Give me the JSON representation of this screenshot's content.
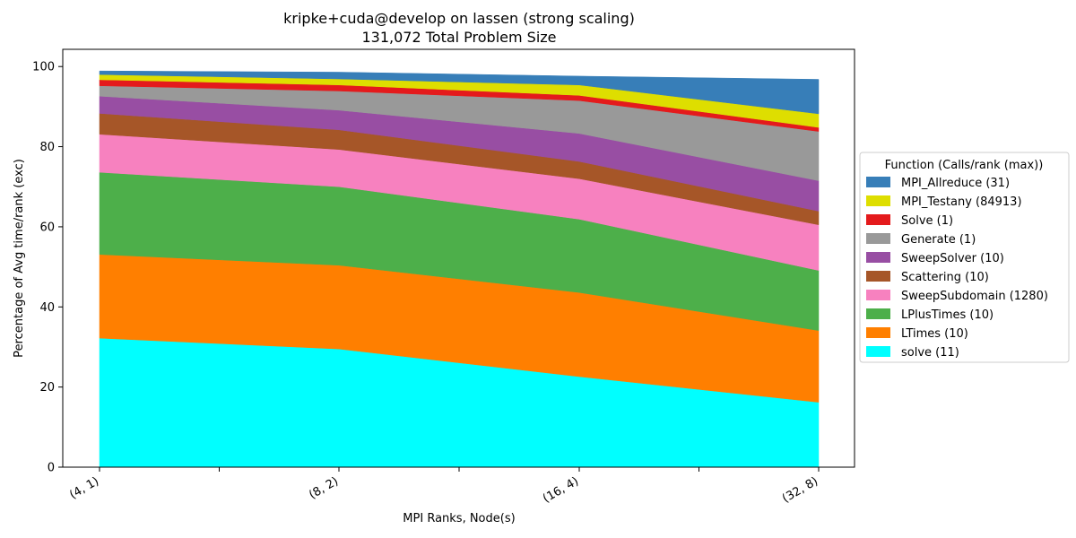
{
  "chart_data": {
    "type": "area",
    "stacked": true,
    "title_line1": "kripke+cuda@develop on lassen (strong scaling)",
    "title_line2": "131,072 Total Problem Size",
    "xlabel": "MPI Ranks, Node(s)",
    "ylabel": "Percentage of Avg time/rank (exc)",
    "categories": [
      "(4, 1)",
      "(8, 2)",
      "(16, 4)",
      "(32, 8)"
    ],
    "ylim": [
      0,
      104.3
    ],
    "yticks": [
      0,
      20,
      40,
      60,
      80,
      100
    ],
    "grid": false,
    "legend_title": "Function (Calls/rank (max))",
    "legend_position": "center-right outside",
    "series": [
      {
        "name": "solve (11)",
        "color": "#00ffff",
        "values": [
          32.2,
          29.5,
          22.6,
          16.2
        ]
      },
      {
        "name": "LTimes (10)",
        "color": "#ff7f00",
        "values": [
          20.9,
          20.9,
          21.0,
          17.9
        ]
      },
      {
        "name": "LPlusTimes (10)",
        "color": "#4daf4a",
        "values": [
          20.5,
          19.6,
          18.3,
          15.0
        ]
      },
      {
        "name": "SweepSubdomain (1280)",
        "color": "#f781bf",
        "values": [
          9.5,
          9.3,
          10.1,
          11.4
        ]
      },
      {
        "name": "Scattering (10)",
        "color": "#a65628",
        "values": [
          5.2,
          4.9,
          4.3,
          3.4
        ]
      },
      {
        "name": "SweepSolver (10)",
        "color": "#984ea3",
        "values": [
          4.3,
          4.9,
          7.0,
          7.6
        ]
      },
      {
        "name": "Generate (1)",
        "color": "#999999",
        "values": [
          2.6,
          4.8,
          8.2,
          12.3
        ]
      },
      {
        "name": "Solve (1)",
        "color": "#e41a1c",
        "values": [
          1.5,
          1.5,
          1.3,
          1.0
        ]
      },
      {
        "name": "MPI_Testany (84913)",
        "color": "#dede00",
        "values": [
          1.3,
          1.5,
          2.6,
          3.4
        ]
      },
      {
        "name": "MPI_Allreduce (31)",
        "color": "#377eb8",
        "values": [
          0.9,
          1.7,
          2.2,
          8.6
        ]
      }
    ]
  }
}
